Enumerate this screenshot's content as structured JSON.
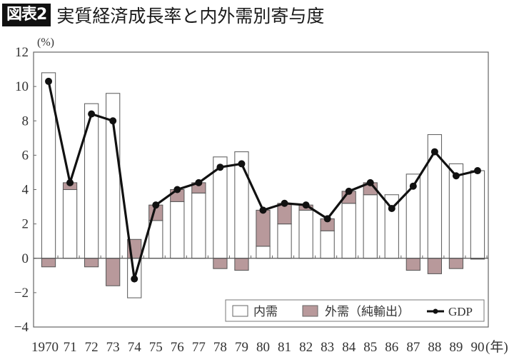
{
  "header": {
    "badge": "図表2",
    "title": "実質経済成長率と内外需別寄与度"
  },
  "chart_data": {
    "type": "bar",
    "title": "実質経済成長率と内外需別寄与度",
    "ylabel": "(%)",
    "xlabel": "(年)",
    "ylim": [
      -4,
      12
    ],
    "yticks": [
      12,
      10,
      8,
      6,
      4,
      2,
      0,
      -2,
      -4
    ],
    "ytick_labels": [
      "12",
      "10",
      "8",
      "6",
      "4",
      "2",
      "0",
      "−2",
      "−4"
    ],
    "grid": false,
    "legend_position": "bottom-right inside",
    "categories": [
      "1970",
      "71",
      "72",
      "73",
      "74",
      "75",
      "76",
      "77",
      "78",
      "79",
      "80",
      "81",
      "82",
      "83",
      "84",
      "85",
      "86",
      "87",
      "88",
      "89",
      "90"
    ],
    "series": [
      {
        "name": "内需",
        "type": "bar",
        "color": "#ffffff",
        "values": [
          10.8,
          4.0,
          9.0,
          9.6,
          -2.3,
          2.2,
          3.3,
          3.8,
          5.9,
          6.2,
          0.7,
          2.0,
          2.8,
          1.6,
          3.2,
          3.7,
          3.7,
          4.9,
          7.2,
          5.5,
          5.1
        ]
      },
      {
        "name": "外需(純輸出)",
        "type": "bar",
        "color": "#b8999b",
        "values": [
          -0.5,
          0.4,
          -0.5,
          -1.6,
          1.1,
          0.9,
          0.7,
          0.6,
          -0.6,
          -0.7,
          2.1,
          1.2,
          0.3,
          0.7,
          0.7,
          0.7,
          0.0,
          -0.7,
          -0.9,
          -0.6,
          -0.05
        ]
      },
      {
        "name": "GDP",
        "type": "line",
        "color": "#111111",
        "values": [
          10.3,
          4.4,
          8.4,
          8.0,
          -1.2,
          3.1,
          4.0,
          4.4,
          5.3,
          5.5,
          2.8,
          3.2,
          3.1,
          2.3,
          3.9,
          4.4,
          2.9,
          4.2,
          6.2,
          4.8,
          5.1
        ]
      }
    ]
  },
  "legend": {
    "domestic": "内需",
    "external": "外需（純輸出）",
    "gdp": "GDP"
  },
  "colors": {
    "external_fill": "#b8999b",
    "axis": "#555555",
    "line": "#111111"
  }
}
